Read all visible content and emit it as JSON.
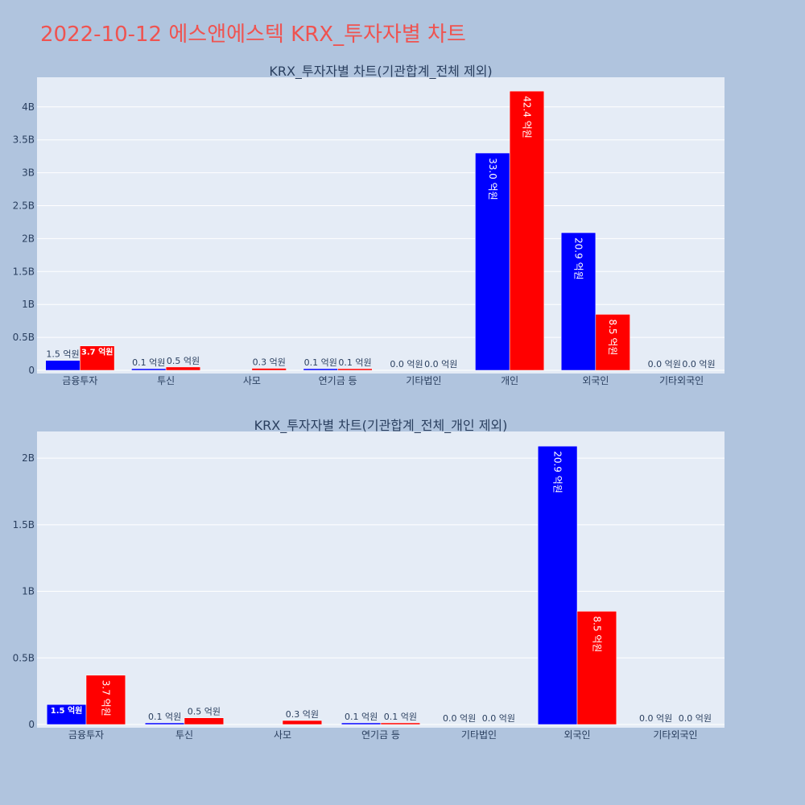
{
  "page": {
    "title": "2022-10-12 에스앤에스텍 KRX_투자자별 차트"
  },
  "colors": {
    "background": "#b0c4de",
    "plot_background": "#e5ecf6",
    "series_1": "#0000ff",
    "series_2": "#ff0000",
    "title": "#ef5350",
    "text": "#2a3f5f"
  },
  "chart_data": [
    {
      "type": "bar",
      "title": "KRX_투자자별 차트(기관합계_전체 제외)",
      "categories": [
        "금융투자",
        "투신",
        "사모",
        "연기금 등",
        "기타법인",
        "개인",
        "외국인",
        "기타외국인"
      ],
      "ylim": [
        0,
        4.45
      ],
      "yunit": "B",
      "yticks": [
        0,
        0.5,
        1,
        1.5,
        2,
        2.5,
        3,
        3.5,
        4
      ],
      "ytick_labels": [
        "0",
        "0.5B",
        "1B",
        "1.5B",
        "2B",
        "2.5B",
        "3B",
        "3.5B",
        "4B"
      ],
      "grid": true,
      "series": [
        {
          "color": "#0000ff",
          "values": [
            0.15,
            0.01,
            0.0,
            0.01,
            0.0,
            3.3,
            2.09,
            0.0
          ],
          "labels": [
            "1.5 억원",
            "0.1 억원",
            "",
            "0.1 억원",
            "0.0 억원",
            "33.0 억원",
            "20.9 억원",
            "0.0 억원"
          ]
        },
        {
          "color": "#ff0000",
          "values": [
            0.37,
            0.05,
            0.03,
            0.01,
            0.0,
            4.24,
            0.85,
            0.0
          ],
          "labels": [
            "3.7 억원",
            "0.5 억원",
            "0.3 억원",
            "0.1 억원",
            "0.0 억원",
            "42.4 억원",
            "8.5 억원",
            "0.0 억원"
          ]
        }
      ]
    },
    {
      "type": "bar",
      "title": "KRX_투자자별 차트(기관합계_전체_개인 제외)",
      "categories": [
        "금융투자",
        "투신",
        "사모",
        "연기금 등",
        "기타법인",
        "외국인",
        "기타외국인"
      ],
      "ylim": [
        0,
        2.2
      ],
      "yunit": "B",
      "yticks": [
        0,
        0.5,
        1,
        1.5,
        2
      ],
      "ytick_labels": [
        "0",
        "0.5B",
        "1B",
        "1.5B",
        "2B"
      ],
      "grid": true,
      "series": [
        {
          "color": "#0000ff",
          "values": [
            0.15,
            0.01,
            0.0,
            0.01,
            0.0,
            2.09,
            0.0
          ],
          "labels": [
            "1.5 억원",
            "0.1 억원",
            "",
            "0.1 억원",
            "0.0 억원",
            "20.9 억원",
            "0.0 억원"
          ]
        },
        {
          "color": "#ff0000",
          "values": [
            0.37,
            0.05,
            0.03,
            0.01,
            0.0,
            0.85,
            0.0
          ],
          "labels": [
            "3.7 억원",
            "0.5 억원",
            "0.3 억원",
            "0.1 억원",
            "0.0 억원",
            "8.5 억원",
            "0.0 억원"
          ]
        }
      ]
    }
  ]
}
